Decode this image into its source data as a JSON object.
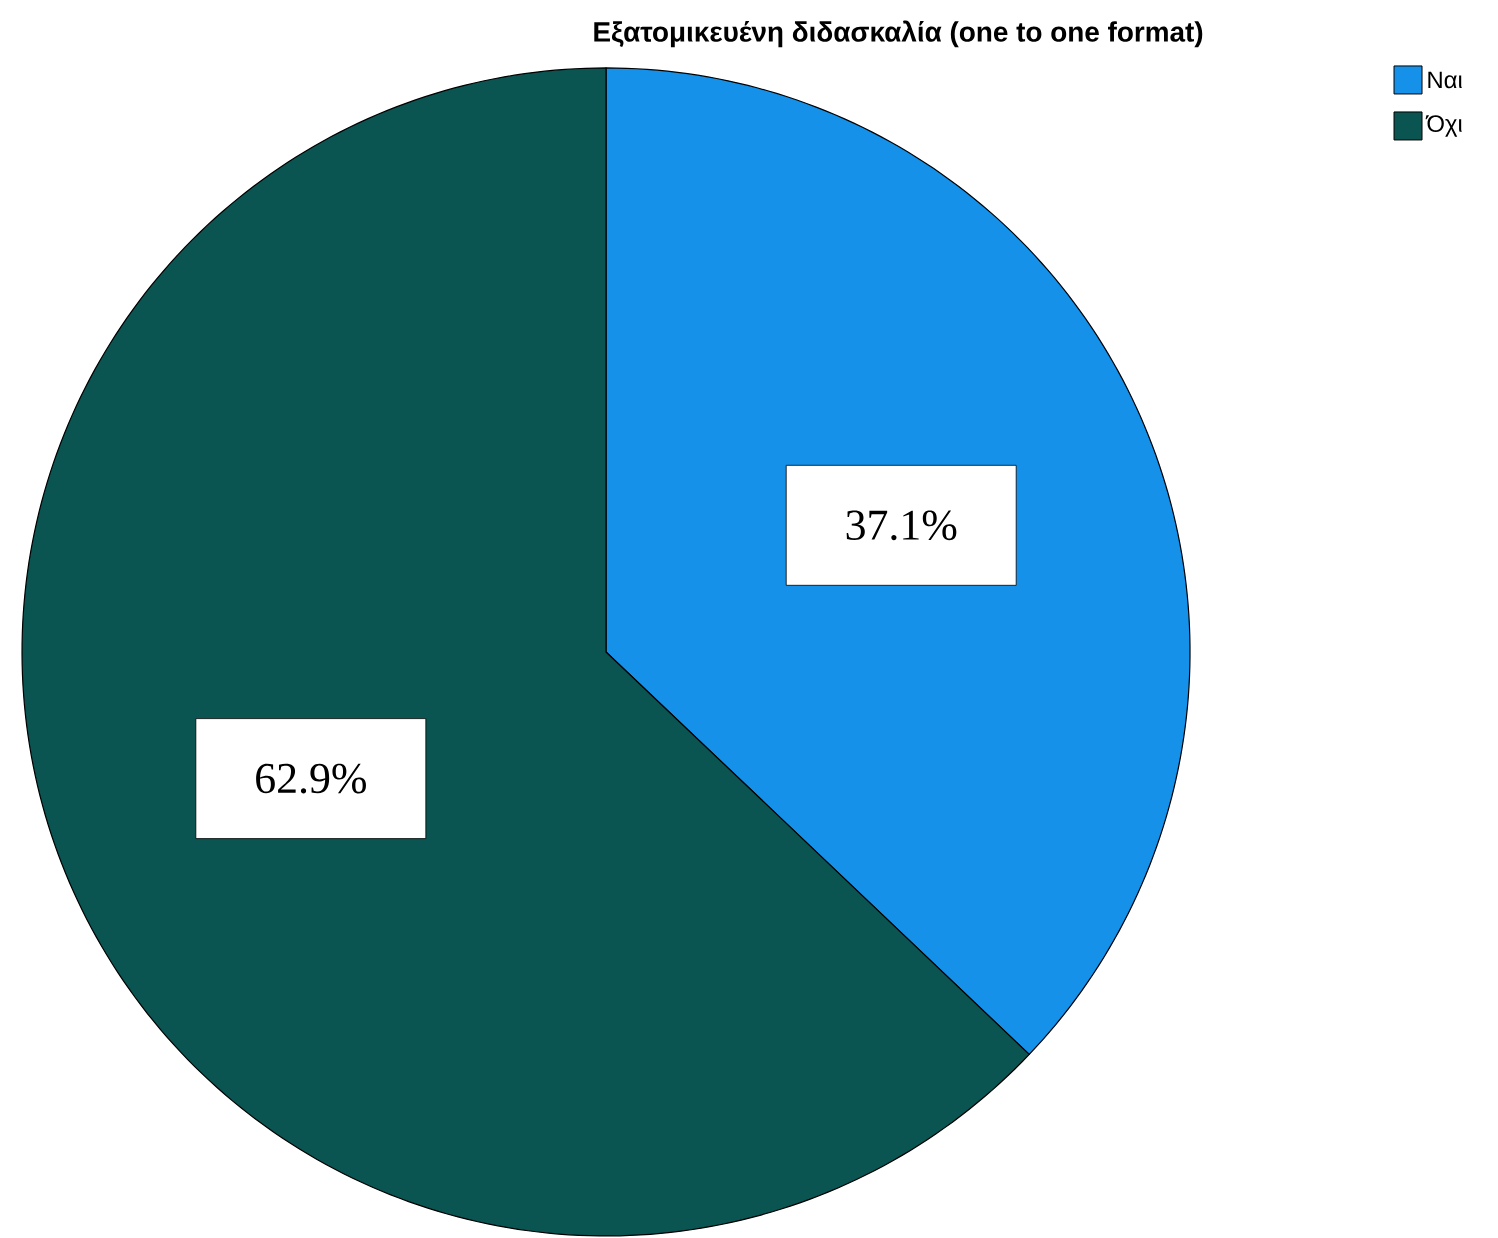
{
  "chart_data": {
    "type": "pie",
    "title": "Εξατομικευένη διδασκαλία (one to one format)",
    "categories": [
      "Ναι",
      "Όχι"
    ],
    "values": [
      37.1,
      62.9
    ],
    "colors": [
      "#1591ea",
      "#0a5452"
    ],
    "value_labels": [
      "37.1%",
      "62.9%"
    ],
    "legend": "top right"
  }
}
